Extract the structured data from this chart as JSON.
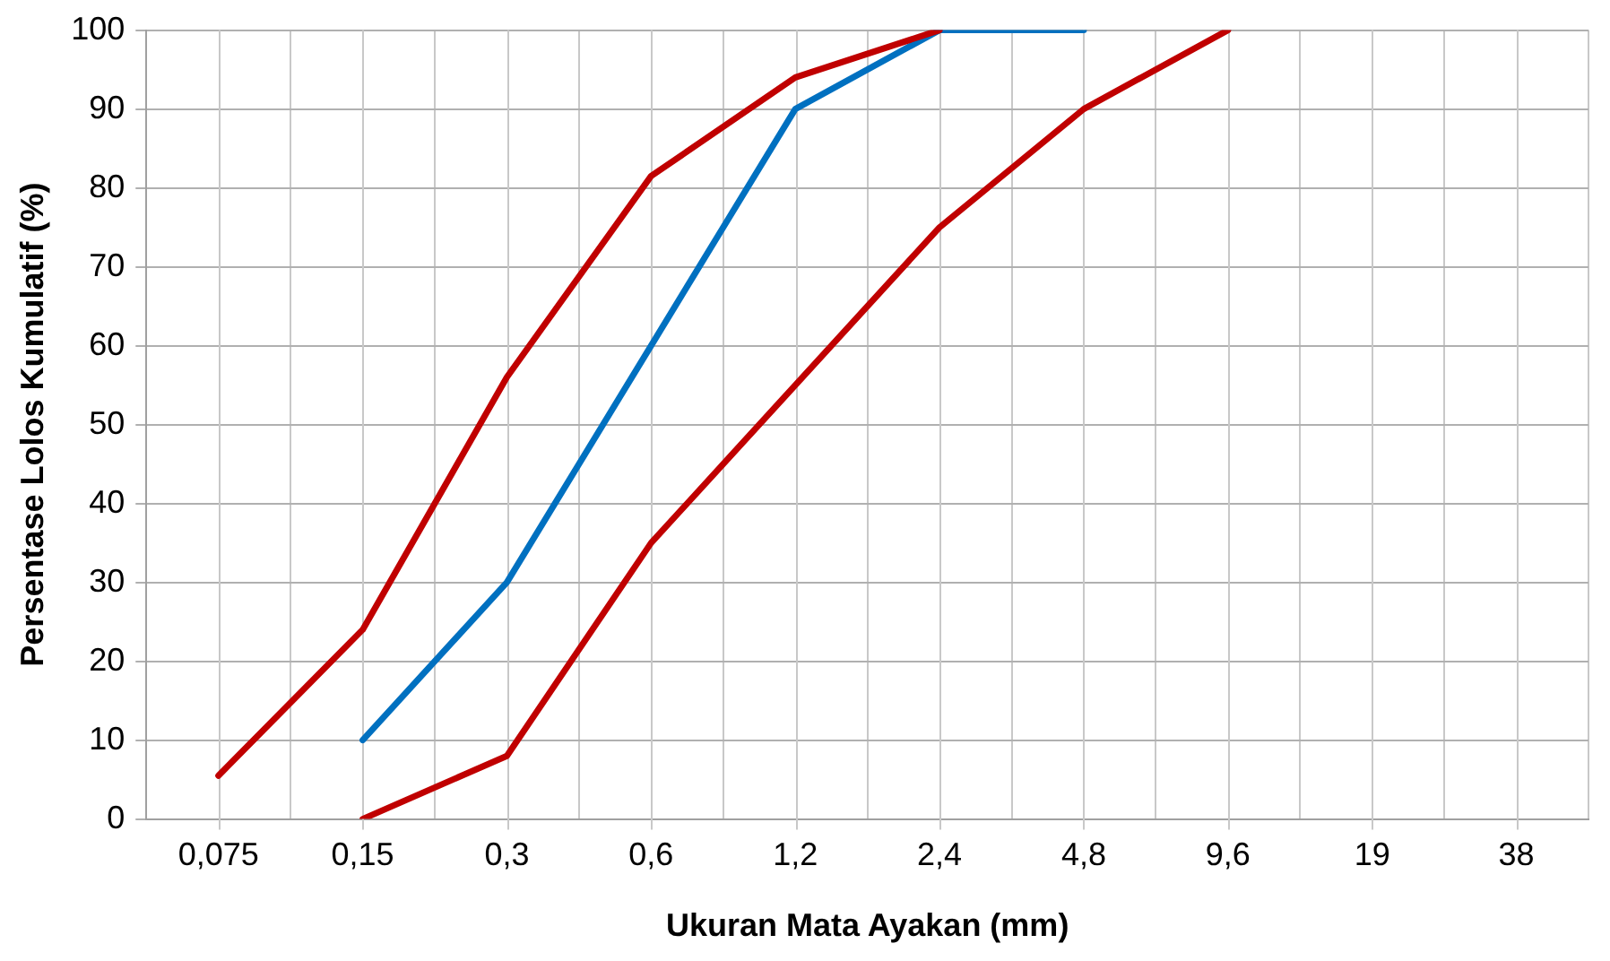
{
  "chart_data": {
    "type": "line",
    "xlabel": "Ukuran Mata Ayakan (mm)",
    "ylabel": "Persentase Lolos Kumulatif (%)",
    "categories": [
      "0,075",
      "0,15",
      "0,3",
      "0,6",
      "1,2",
      "2,4",
      "4,8",
      "9,6",
      "19",
      "38"
    ],
    "series": [
      {
        "color": "#c00000",
        "values": [
          5.5,
          24,
          56,
          81.5,
          94,
          100,
          null,
          null,
          null,
          null
        ]
      },
      {
        "color": "#0070c0",
        "values": [
          null,
          10,
          30,
          60,
          90,
          100,
          100,
          null,
          null,
          null
        ]
      },
      {
        "color": "#c00000",
        "values": [
          null,
          0,
          8,
          35,
          55,
          75,
          90,
          100,
          null,
          null
        ]
      }
    ],
    "ylim": [
      0,
      100
    ],
    "yticks": [
      0,
      10,
      20,
      30,
      40,
      50,
      60,
      70,
      80,
      90,
      100
    ],
    "grid": true,
    "legend": false,
    "marker": "none",
    "line_style": "solid"
  }
}
